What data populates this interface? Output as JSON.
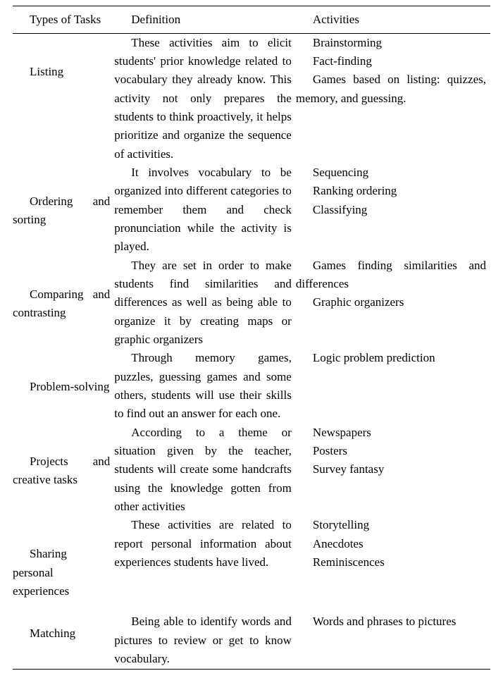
{
  "table": {
    "columns": {
      "types": "Types of Tasks",
      "definition": "Definition",
      "activities": "Activities"
    },
    "rows": [
      {
        "type": "Listing",
        "definition": "These activities aim to elicit students' prior knowledge related to vocabulary they already know. This activity not only prepares the students to think proactively, it helps prioritize and organize the sequence of activities.",
        "activities": [
          "Brainstorming",
          "Fact-finding",
          "Games based on listing: quizzes, memory, and guessing."
        ]
      },
      {
        "type": "Ordering and sorting",
        "definition": "It involves vocabulary to be organized into different categories to remember them and check pronunciation while the activity is played.",
        "activities": [
          "Sequencing",
          "Ranking ordering",
          "Classifying"
        ]
      },
      {
        "type": "Comparing and contrasting",
        "definition": "They are set in order to make students find similarities and differences as well as being able to organize it by creating maps or graphic organizers",
        "activities": [
          "Games finding similarities and differences",
          "Graphic organizers"
        ]
      },
      {
        "type": "Problem-solving",
        "definition": "Through memory games, puzzles, guessing games and some others, students will use their skills to find out an answer for each one.",
        "activities": [
          "Logic problem prediction"
        ]
      },
      {
        "type": "Projects and creative tasks",
        "definition": "According to a theme or situation given by the teacher, students will create some handcrafts using the knowledge gotten from other activities",
        "activities": [
          "Newspapers",
          "Posters",
          "Survey fantasy"
        ]
      },
      {
        "type": "Sharing personal experiences",
        "definition": " These activities are related to report personal information about experiences students have lived.",
        "activities": [
          "Storytelling",
          "Anecdotes",
          "Reminiscences"
        ]
      },
      {
        "type": "Matching",
        "definition": "Being able to identify words and pictures to review or get to know vocabulary.",
        "activities": [
          "Words and phrases to pictures"
        ]
      }
    ],
    "font_family": "Times New Roman",
    "font_size_pt": 12.5,
    "text_color": "#000000",
    "background_color": "#ffffff",
    "rule_color": "#000000"
  }
}
